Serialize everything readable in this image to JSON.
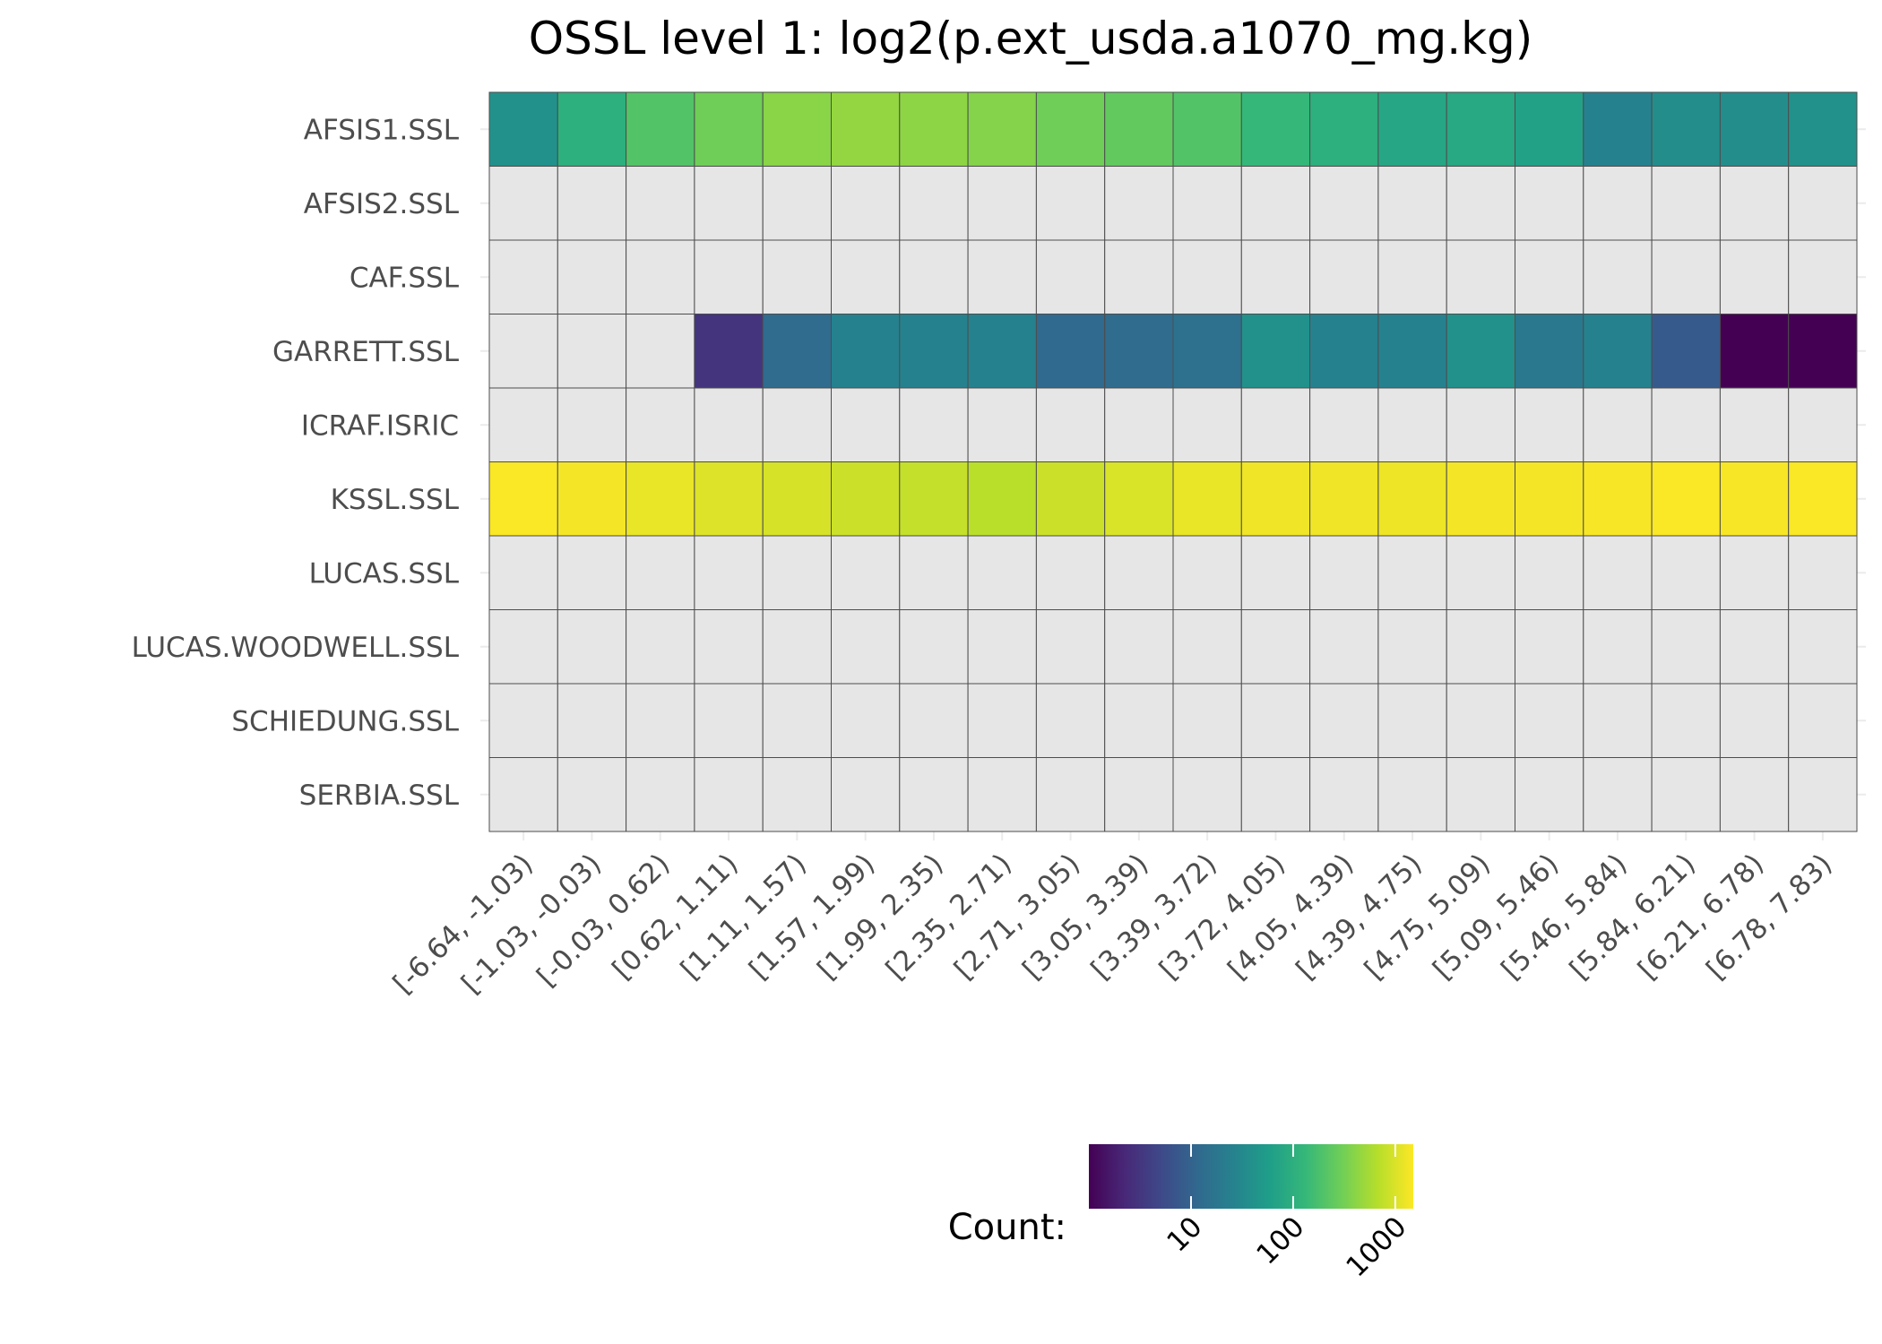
{
  "chart_data": {
    "type": "heatmap",
    "title": "OSSL level 1: log2(p.ext_usda.a1070_mg.kg)",
    "xlabel": "",
    "ylabel": "",
    "rows": [
      "AFSIS1.SSL",
      "AFSIS2.SSL",
      "CAF.SSL",
      "GARRETT.SSL",
      "ICRAF.ISRIC",
      "KSSL.SSL",
      "LUCAS.SSL",
      "LUCAS.WOODWELL.SSL",
      "SCHIEDUNG.SSL",
      "SERBIA.SSL"
    ],
    "columns": [
      "[-6.64, -1.03)",
      "[-1.03, -0.03)",
      "[-0.03, 0.62)",
      "[0.62, 1.11)",
      "[1.11, 1.57)",
      "[1.57, 1.99)",
      "[1.99, 2.35)",
      "[2.35, 2.71)",
      "[2.71, 3.05)",
      "[3.05, 3.39)",
      "[3.39, 3.72)",
      "[3.72, 4.05)",
      "[4.05, 4.39)",
      "[4.39, 4.75)",
      "[4.75, 5.09)",
      "[5.09, 5.46)",
      "[5.46, 5.84)",
      "[5.84, 6.21)",
      "[6.21, 6.78)",
      "[6.78, 7.83)"
    ],
    "values": [
      [
        40,
        100,
        200,
        300,
        400,
        450,
        420,
        380,
        300,
        250,
        200,
        130,
        100,
        75,
        80,
        65,
        25,
        35,
        35,
        40
      ],
      [
        null,
        null,
        null,
        null,
        null,
        null,
        null,
        null,
        null,
        null,
        null,
        null,
        null,
        null,
        null,
        null,
        null,
        null,
        null,
        null
      ],
      [
        null,
        null,
        null,
        null,
        null,
        null,
        null,
        null,
        null,
        null,
        null,
        null,
        null,
        null,
        null,
        null,
        null,
        null,
        null,
        null
      ],
      [
        null,
        null,
        null,
        3,
        13,
        25,
        25,
        25,
        12,
        13,
        15,
        40,
        25,
        25,
        40,
        19,
        25,
        8,
        1,
        1
      ],
      [
        null,
        null,
        null,
        null,
        null,
        null,
        null,
        null,
        null,
        null,
        null,
        null,
        null,
        null,
        null,
        null,
        null,
        null,
        null,
        null
      ],
      [
        1450,
        1350,
        1200,
        1050,
        950,
        850,
        800,
        700,
        850,
        1000,
        1200,
        1300,
        1300,
        1250,
        1350,
        1350,
        1400,
        1450,
        1400,
        1450
      ],
      [
        null,
        null,
        null,
        null,
        null,
        null,
        null,
        null,
        null,
        null,
        null,
        null,
        null,
        null,
        null,
        null,
        null,
        null,
        null,
        null
      ],
      [
        null,
        null,
        null,
        null,
        null,
        null,
        null,
        null,
        null,
        null,
        null,
        null,
        null,
        null,
        null,
        null,
        null,
        null,
        null,
        null
      ],
      [
        null,
        null,
        null,
        null,
        null,
        null,
        null,
        null,
        null,
        null,
        null,
        null,
        null,
        null,
        null,
        null,
        null,
        null,
        null,
        null
      ],
      [
        null,
        null,
        null,
        null,
        null,
        null,
        null,
        null,
        null,
        null,
        null,
        null,
        null,
        null,
        null,
        null,
        null,
        null,
        null,
        null
      ]
    ],
    "color_scale": {
      "type": "log10",
      "palette": "viridis",
      "domain": [
        1,
        1500
      ],
      "na_color": "#e6e6e6",
      "stops": [
        "#440154",
        "#482878",
        "#3e4989",
        "#31688e",
        "#26828e",
        "#1f9e89",
        "#35b779",
        "#6ece58",
        "#b5de2b",
        "#fde725"
      ]
    },
    "legend": {
      "title": "Count:",
      "position": "bottom",
      "ticks": [
        10,
        100,
        1000
      ],
      "tick_labels": [
        "10",
        "100",
        "1000"
      ]
    },
    "grid": true
  }
}
